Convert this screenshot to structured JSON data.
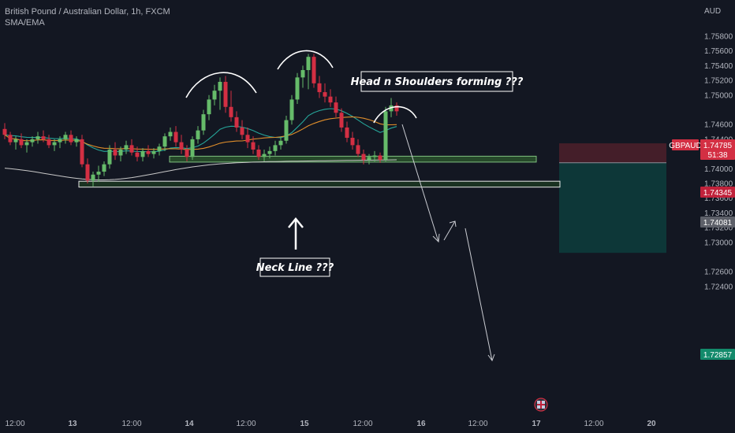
{
  "header": {
    "symbol_line": "British Pound / Australian Dollar, 1h, FXCM",
    "indicator_line": "SMA/EMA"
  },
  "axis": {
    "currency": "AUD",
    "y_ticks": [
      "1.75800",
      "1.75600",
      "1.75400",
      "1.75200",
      "1.75000",
      "1.74600",
      "1.74400",
      "1.74000",
      "1.73800",
      "1.73600",
      "1.73400",
      "1.73200",
      "1.73000",
      "1.72600",
      "1.72400"
    ],
    "x_ticks": [
      "12:00",
      "13",
      "12:00",
      "14",
      "12:00",
      "15",
      "12:00",
      "16",
      "12:00",
      "17",
      "12:00",
      "20"
    ]
  },
  "price_labels": {
    "symbol": "GBPAUD",
    "last_price": "1.74785",
    "countdown": "51:38",
    "stop_loss": "1.74345",
    "entry": "1.74081",
    "take_profit": "1.72857"
  },
  "annotations": {
    "pattern": "Head n Shoulders forming ???",
    "neck": "Neck Line ???"
  },
  "colors": {
    "background": "#131722",
    "bull": "#66bb6a",
    "bear": "#d32f43",
    "ema": "#26a69a",
    "sma": "#e08e2b",
    "long_ma": "#c8c8c8",
    "zone_fill": "#2e5b2e",
    "zone_stroke": "#7fbf7f",
    "stop_zone": "#4a1f2a",
    "target_zone": "#0d3b3b",
    "icon": "flag-icon"
  },
  "chart_data": {
    "type": "candlestick",
    "symbol": "GBPAUD",
    "timeframe": "1h",
    "ylim": [
      1.7236,
      1.7597
    ],
    "ohlc": [
      [
        1.7454,
        1.7462,
        1.744,
        1.7446
      ],
      [
        1.7446,
        1.745,
        1.7432,
        1.7436
      ],
      [
        1.7436,
        1.7444,
        1.7426,
        1.744
      ],
      [
        1.744,
        1.7448,
        1.7428,
        1.7432
      ],
      [
        1.7432,
        1.744,
        1.7422,
        1.7436
      ],
      [
        1.7436,
        1.7444,
        1.743,
        1.744
      ],
      [
        1.744,
        1.745,
        1.7434,
        1.7444
      ],
      [
        1.7444,
        1.7452,
        1.7436,
        1.744
      ],
      [
        1.744,
        1.7446,
        1.7428,
        1.7432
      ],
      [
        1.7432,
        1.744,
        1.7424,
        1.7436
      ],
      [
        1.7436,
        1.7444,
        1.7428,
        1.744
      ],
      [
        1.744,
        1.745,
        1.7434,
        1.7446
      ],
      [
        1.7446,
        1.7452,
        1.7432,
        1.7436
      ],
      [
        1.7436,
        1.7444,
        1.743,
        1.744
      ],
      [
        1.744,
        1.7446,
        1.7402,
        1.7406
      ],
      [
        1.7406,
        1.7414,
        1.738,
        1.7384
      ],
      [
        1.7384,
        1.7396,
        1.7376,
        1.7392
      ],
      [
        1.7392,
        1.7404,
        1.7382,
        1.7396
      ],
      [
        1.7396,
        1.741,
        1.739,
        1.7406
      ],
      [
        1.7406,
        1.7432,
        1.74,
        1.7426
      ],
      [
        1.7426,
        1.7436,
        1.7412,
        1.7418
      ],
      [
        1.7418,
        1.743,
        1.741,
        1.7426
      ],
      [
        1.7426,
        1.7438,
        1.742,
        1.7432
      ],
      [
        1.7432,
        1.744,
        1.7418,
        1.7422
      ],
      [
        1.7422,
        1.743,
        1.741,
        1.7416
      ],
      [
        1.7416,
        1.7428,
        1.741,
        1.7424
      ],
      [
        1.7424,
        1.7432,
        1.7416,
        1.742
      ],
      [
        1.742,
        1.7428,
        1.7414,
        1.7424
      ],
      [
        1.7424,
        1.7434,
        1.7418,
        1.743
      ],
      [
        1.743,
        1.7448,
        1.7424,
        1.7444
      ],
      [
        1.7444,
        1.7456,
        1.7438,
        1.745
      ],
      [
        1.745,
        1.7458,
        1.743,
        1.7436
      ],
      [
        1.7436,
        1.7446,
        1.742,
        1.7426
      ],
      [
        1.7426,
        1.7432,
        1.741,
        1.7416
      ],
      [
        1.7416,
        1.7444,
        1.7412,
        1.744
      ],
      [
        1.744,
        1.7458,
        1.7434,
        1.7452
      ],
      [
        1.7452,
        1.748,
        1.7446,
        1.7474
      ],
      [
        1.7474,
        1.75,
        1.7466,
        1.7494
      ],
      [
        1.7494,
        1.7514,
        1.7486,
        1.7506
      ],
      [
        1.7506,
        1.7524,
        1.748,
        1.7518
      ],
      [
        1.7518,
        1.7526,
        1.7476,
        1.7484
      ],
      [
        1.7484,
        1.7506,
        1.7464,
        1.747
      ],
      [
        1.747,
        1.7478,
        1.745,
        1.7456
      ],
      [
        1.7456,
        1.7466,
        1.744,
        1.7446
      ],
      [
        1.7446,
        1.7456,
        1.7428,
        1.7436
      ],
      [
        1.7436,
        1.7444,
        1.742,
        1.7426
      ],
      [
        1.7426,
        1.7432,
        1.7412,
        1.7416
      ],
      [
        1.7416,
        1.7426,
        1.741,
        1.742
      ],
      [
        1.742,
        1.743,
        1.7414,
        1.7424
      ],
      [
        1.7424,
        1.7438,
        1.7418,
        1.7432
      ],
      [
        1.7432,
        1.7444,
        1.7426,
        1.7438
      ],
      [
        1.7438,
        1.7472,
        1.7434,
        1.7466
      ],
      [
        1.7466,
        1.75,
        1.746,
        1.7494
      ],
      [
        1.7494,
        1.753,
        1.7488,
        1.7524
      ],
      [
        1.7524,
        1.754,
        1.751,
        1.7534
      ],
      [
        1.7534,
        1.7556,
        1.7508,
        1.7552
      ],
      [
        1.7552,
        1.7556,
        1.751,
        1.7516
      ],
      [
        1.7516,
        1.7526,
        1.7496,
        1.7504
      ],
      [
        1.7504,
        1.7516,
        1.749,
        1.7498
      ],
      [
        1.7498,
        1.7508,
        1.7484,
        1.749
      ],
      [
        1.749,
        1.7498,
        1.747,
        1.7476
      ],
      [
        1.7476,
        1.7482,
        1.745,
        1.7456
      ],
      [
        1.7456,
        1.7464,
        1.7436,
        1.7442
      ],
      [
        1.7442,
        1.745,
        1.7426,
        1.7432
      ],
      [
        1.7432,
        1.744,
        1.7416,
        1.742
      ],
      [
        1.742,
        1.7426,
        1.7406,
        1.7412
      ],
      [
        1.7412,
        1.742,
        1.7406,
        1.7416
      ],
      [
        1.7416,
        1.7424,
        1.741,
        1.7418
      ],
      [
        1.7418,
        1.7422,
        1.7408,
        1.7412
      ],
      [
        1.7412,
        1.7484,
        1.741,
        1.7478
      ],
      [
        1.7478,
        1.7496,
        1.747,
        1.7486
      ],
      [
        1.7486,
        1.749,
        1.7472,
        1.7478
      ]
    ],
    "zones": {
      "upper_support": [
        1.7409,
        1.7417
      ],
      "neck_line": [
        1.7375,
        1.7383
      ],
      "stop_loss": 1.74345,
      "entry": 1.74081,
      "take_profit": 1.72857
    }
  }
}
